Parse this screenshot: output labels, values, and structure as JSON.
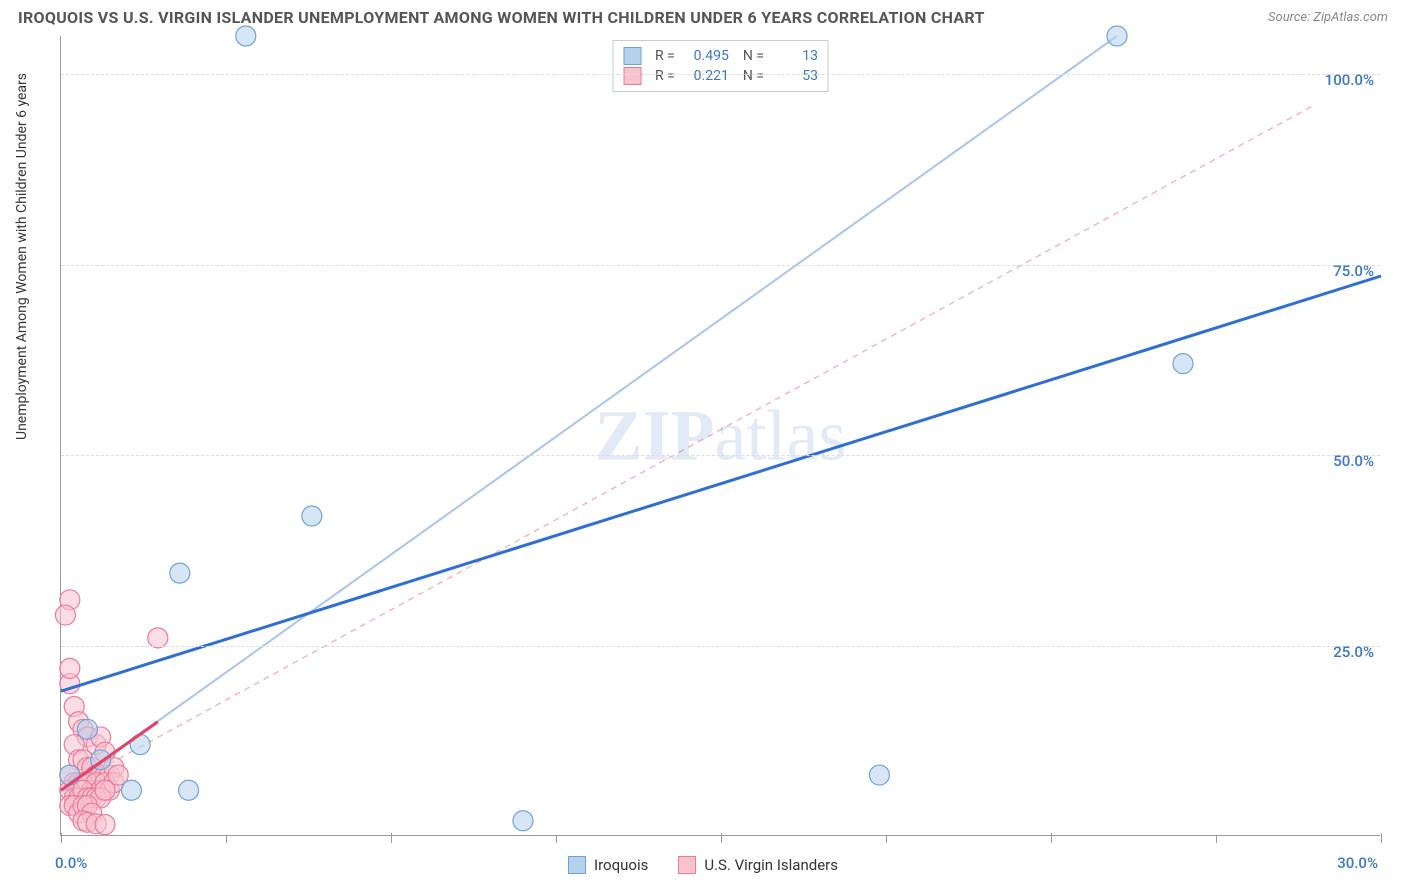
{
  "meta": {
    "title": "IROQUOIS VS U.S. VIRGIN ISLANDER UNEMPLOYMENT AMONG WOMEN WITH CHILDREN UNDER 6 YEARS CORRELATION CHART",
    "source": "Source: ZipAtlas.com",
    "watermark_a": "ZIP",
    "watermark_b": "atlas"
  },
  "chart": {
    "type": "scatter",
    "ylabel": "Unemployment Among Women with Children Under 6 years",
    "xlim": [
      0,
      30
    ],
    "ylim": [
      0,
      105
    ],
    "xtick_major": [
      0,
      7.5,
      15,
      22.5,
      30
    ],
    "xtick_minor": [
      3.75,
      11.25,
      18.75,
      26.25
    ],
    "xtick_labels": {
      "0": "0.0%",
      "30": "30.0%"
    },
    "ytick_major": [
      25,
      50,
      75,
      100
    ],
    "ytick_labels": {
      "25": "25.0%",
      "50": "50.0%",
      "75": "75.0%",
      "100": "100.0%"
    },
    "background_color": "#ffffff",
    "grid_color": "#dddddd",
    "axis_color": "#999999",
    "axis_label_color": "#3b77c4",
    "series": {
      "iroquois": {
        "label": "Iroquois",
        "point_fill": "#b6d1eb",
        "point_stroke": "#6fa3d8",
        "point_radius": 10,
        "trend_color": "#2f6fd0",
        "trend_width": 3,
        "trend_dash": "none",
        "trend_extrapolate_color": "#a8c5ea",
        "trend_p1": [
          0,
          19
        ],
        "trend_p2": [
          30,
          73.5
        ],
        "data_p1": [
          0,
          6
        ],
        "data_p2": [
          24,
          105
        ],
        "R": "0.495",
        "N": "13",
        "points": [
          [
            4.2,
            105
          ],
          [
            24.0,
            105
          ],
          [
            25.5,
            62
          ],
          [
            2.7,
            34.5
          ],
          [
            5.7,
            42
          ],
          [
            18.6,
            8
          ],
          [
            10.5,
            2
          ],
          [
            2.9,
            6
          ],
          [
            1.6,
            6
          ],
          [
            0.6,
            14
          ],
          [
            1.8,
            12
          ],
          [
            0.9,
            10
          ],
          [
            0.2,
            8
          ]
        ]
      },
      "usvi": {
        "label": "U.S. Virgin Islanders",
        "point_fill": "#f7c3cf",
        "point_stroke": "#ec7a98",
        "point_radius": 10,
        "trend_color": "#e0456b",
        "trend_width": 3,
        "trend_dash": "none",
        "trend_extrapolate_color": "#f3b6c5",
        "trend_extrapolate_dash": "6,5",
        "trend_p1": [
          0,
          6
        ],
        "trend_p2": [
          2.2,
          15
        ],
        "extrap_p1": [
          0,
          6
        ],
        "extrap_p2": [
          28.5,
          96
        ],
        "R": "0.221",
        "N": "53",
        "points": [
          [
            0.2,
            31
          ],
          [
            0.1,
            29
          ],
          [
            2.2,
            26
          ],
          [
            0.2,
            20
          ],
          [
            0.2,
            22
          ],
          [
            0.3,
            17
          ],
          [
            0.4,
            15
          ],
          [
            0.5,
            14
          ],
          [
            0.6,
            13
          ],
          [
            0.3,
            12
          ],
          [
            0.8,
            12
          ],
          [
            0.9,
            13
          ],
          [
            1.0,
            11
          ],
          [
            0.4,
            10
          ],
          [
            0.5,
            10
          ],
          [
            0.6,
            9
          ],
          [
            0.7,
            9
          ],
          [
            0.8,
            8
          ],
          [
            0.9,
            8
          ],
          [
            1.0,
            8
          ],
          [
            1.1,
            8
          ],
          [
            1.2,
            9
          ],
          [
            0.2,
            8
          ],
          [
            0.3,
            7
          ],
          [
            0.4,
            7
          ],
          [
            0.5,
            7
          ],
          [
            0.6,
            7
          ],
          [
            0.7,
            6
          ],
          [
            0.8,
            7
          ],
          [
            0.9,
            6
          ],
          [
            1.0,
            7
          ],
          [
            1.1,
            6
          ],
          [
            1.2,
            7
          ],
          [
            1.3,
            8
          ],
          [
            0.2,
            6
          ],
          [
            0.3,
            5
          ],
          [
            0.4,
            5
          ],
          [
            0.5,
            6
          ],
          [
            0.6,
            5
          ],
          [
            0.7,
            5
          ],
          [
            0.8,
            5
          ],
          [
            0.9,
            5
          ],
          [
            1.0,
            6
          ],
          [
            0.2,
            4
          ],
          [
            0.3,
            4
          ],
          [
            0.4,
            3
          ],
          [
            0.5,
            4
          ],
          [
            0.6,
            4
          ],
          [
            0.7,
            3
          ],
          [
            0.5,
            2
          ],
          [
            0.6,
            1.8
          ],
          [
            0.8,
            1.6
          ],
          [
            1.0,
            1.5
          ]
        ]
      }
    },
    "legend_top": {
      "R_label": "R =",
      "N_label": "N ="
    }
  }
}
